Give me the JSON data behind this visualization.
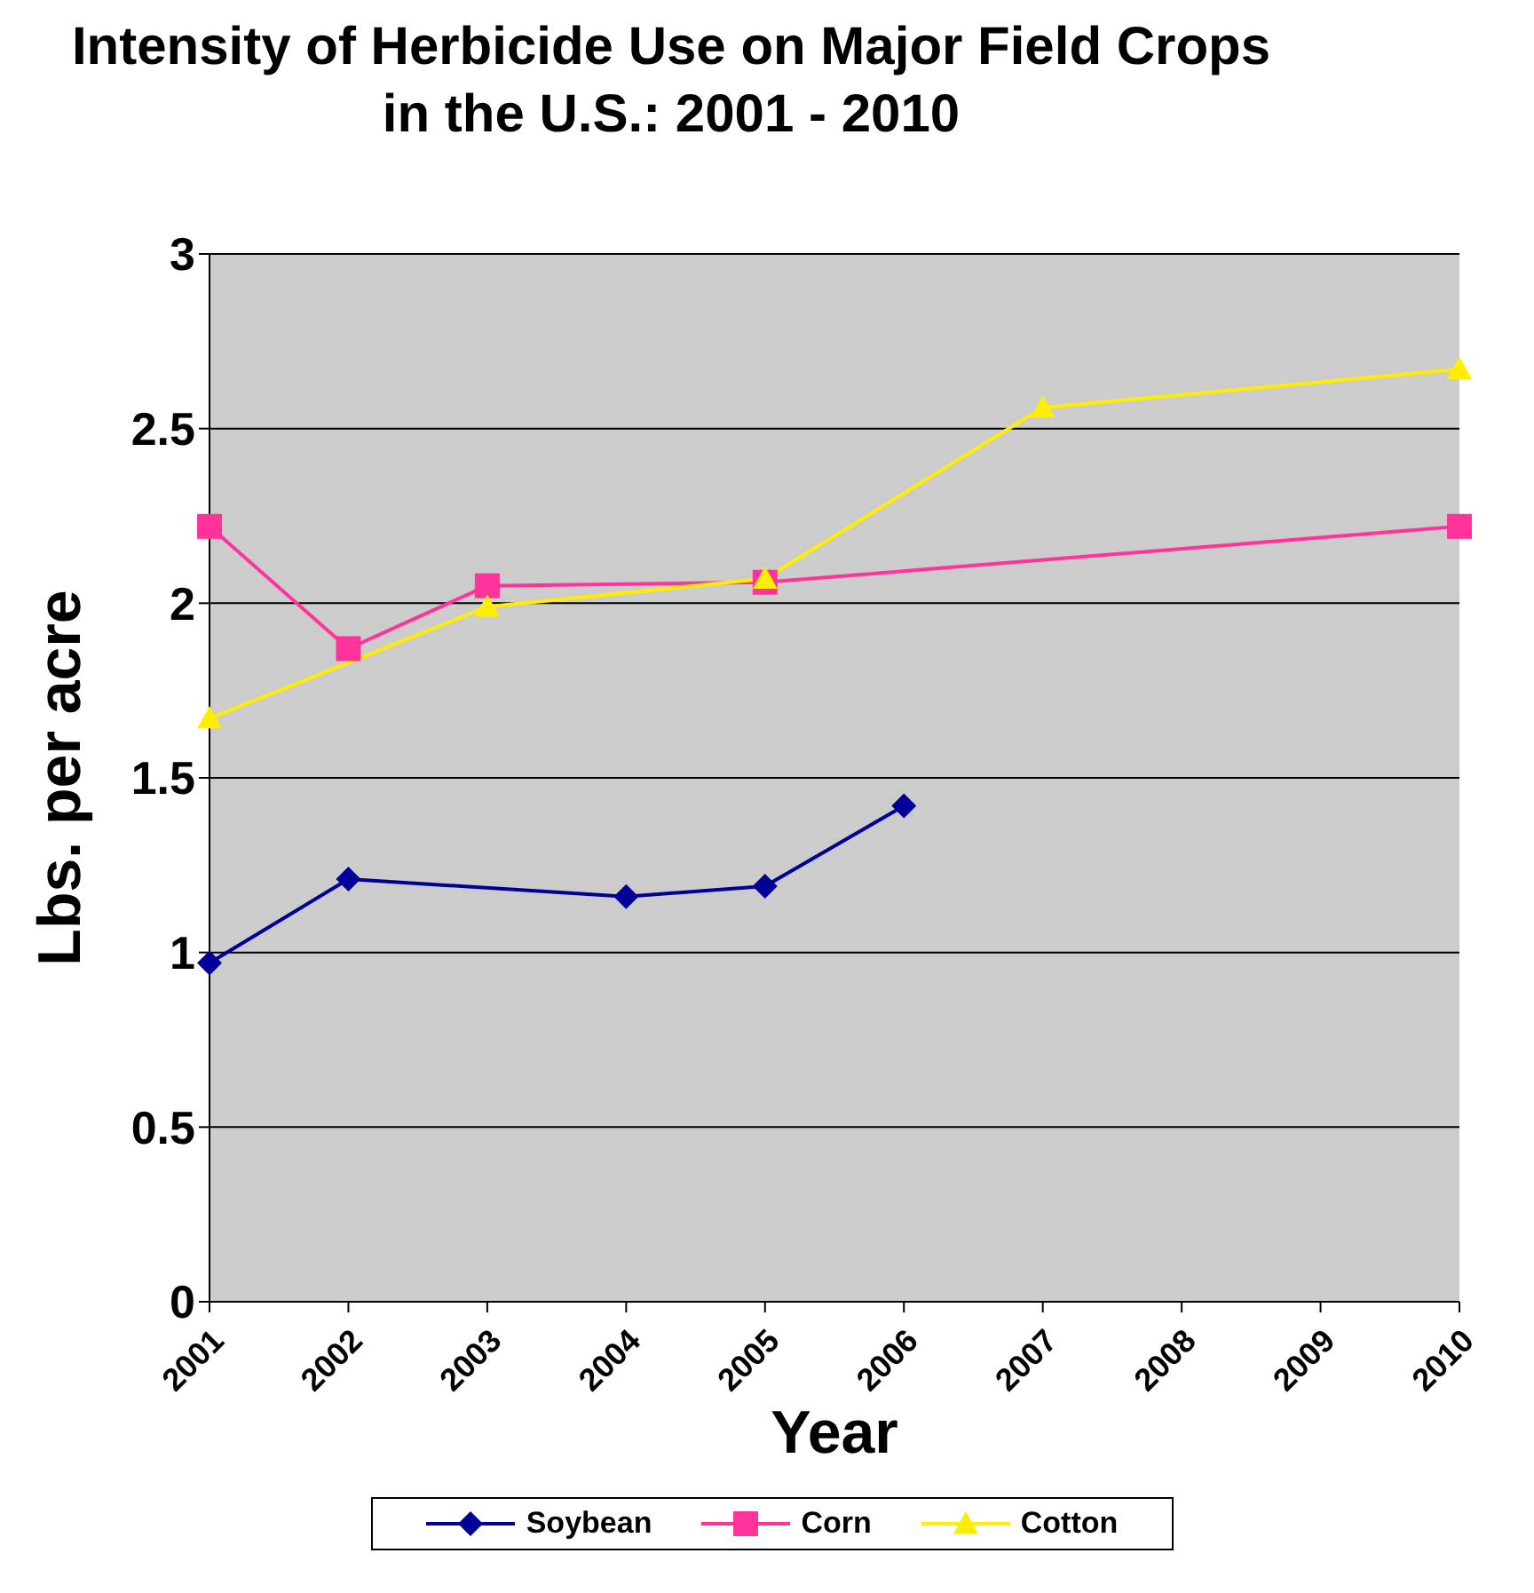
{
  "chart_data": {
    "type": "line",
    "title": "Intensity of Herbicide Use on Major Field Crops in the U.S.: 2001 - 2010",
    "xlabel": "Year",
    "ylabel": "Lbs. per acre",
    "categories": [
      "2001",
      "2002",
      "2003",
      "2004",
      "2005",
      "2006",
      "2007",
      "2008",
      "2009",
      "2010"
    ],
    "series": [
      {
        "name": "Soybean",
        "color": "#000099",
        "marker": "diamond",
        "values": [
          0.97,
          1.21,
          null,
          1.16,
          1.19,
          1.42,
          null,
          null,
          null,
          null
        ]
      },
      {
        "name": "Corn",
        "color": "#ff3399",
        "marker": "square",
        "values": [
          2.22,
          1.87,
          2.05,
          null,
          2.06,
          null,
          null,
          null,
          null,
          2.22
        ]
      },
      {
        "name": "Cotton",
        "color": "#ffee00",
        "marker": "triangle",
        "values": [
          1.67,
          null,
          1.99,
          null,
          2.07,
          null,
          2.56,
          null,
          null,
          2.67
        ]
      }
    ],
    "ylim": [
      0,
      3
    ],
    "yticks": [
      0,
      0.5,
      1,
      1.5,
      2,
      2.5,
      3
    ],
    "grid": "y",
    "legend": "bottom"
  }
}
